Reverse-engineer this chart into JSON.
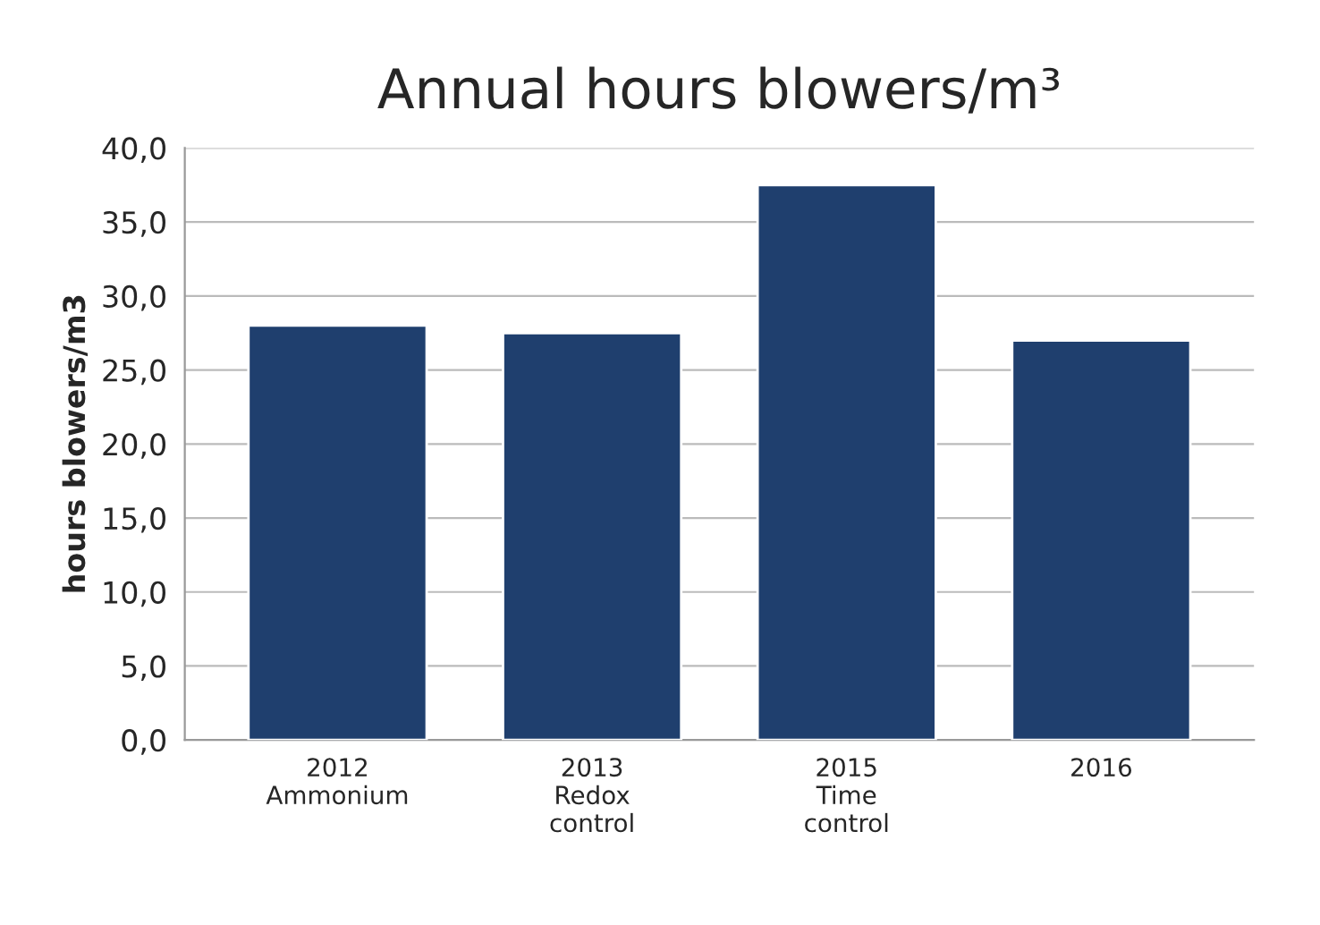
{
  "chart_data": {
    "type": "bar",
    "title": "Annual hours blowers/m³",
    "ylabel": "hours blowers/m3",
    "categories": [
      "2012\nAmmonium",
      "2013\nRedox\ncontrol",
      "2015\nTime\ncontrol",
      "2016"
    ],
    "values": [
      28,
      27.5,
      37.5,
      27
    ],
    "color": "#1f3f6e",
    "ylim": [
      0,
      40
    ],
    "yticks": [
      {
        "value": 0,
        "label": "0,0"
      },
      {
        "value": 5,
        "label": "5,0"
      },
      {
        "value": 10,
        "label": "10,0"
      },
      {
        "value": 15,
        "label": "15,0"
      },
      {
        "value": 20,
        "label": "20,0"
      },
      {
        "value": 25,
        "label": "25,0"
      },
      {
        "value": 30,
        "label": "30,0"
      },
      {
        "value": 35,
        "label": "35,0"
      },
      {
        "value": 40,
        "label": "40,0"
      }
    ],
    "grid": "y",
    "legend": false
  }
}
